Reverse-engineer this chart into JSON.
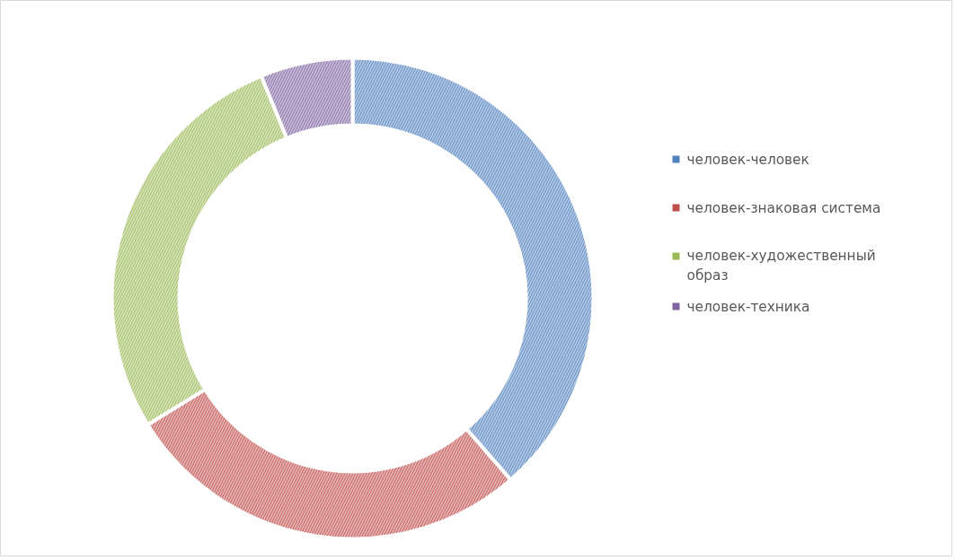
{
  "chart_data": {
    "type": "donut",
    "categories": [
      "человек-человек",
      "человек-знаковая система",
      "человек-художественный образ",
      "человек-техника"
    ],
    "values": [
      38.6,
      27.6,
      27.6,
      6.2
    ],
    "colors": [
      "#4f81bd",
      "#c0504d",
      "#9bbb59",
      "#8064a2"
    ],
    "legend": "right"
  }
}
